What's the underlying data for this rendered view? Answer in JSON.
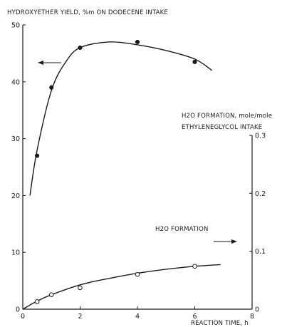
{
  "chart_data": {
    "type": "line",
    "xlabel": "REACTION TIME, h",
    "ylabel_left": "HYDROXYETHER YIELD, %m ON DODECENE INTAKE",
    "ylabel_right_line1": "H2O FORMATION, mole/mole",
    "ylabel_right_line2": "ETHYLENEGLYCOL INTAKE",
    "xlim": [
      0,
      8
    ],
    "ylim_left": [
      0,
      50
    ],
    "ylim_right": [
      0,
      0.3
    ],
    "x_ticks": [
      "0",
      "2",
      "4",
      "6",
      "8"
    ],
    "y_left_ticks": [
      "0",
      "10",
      "20",
      "30",
      "40",
      "50"
    ],
    "y_right_ticks": [
      "0",
      "0.1",
      "0.2",
      "0.3"
    ],
    "right_tick_values": [
      0,
      0.1,
      0.2,
      0.3
    ],
    "series": [
      {
        "axis": "left",
        "marker": "filled",
        "points": [
          {
            "x": 0.5,
            "y": 27
          },
          {
            "x": 1,
            "y": 39
          },
          {
            "x": 2,
            "y": 46
          },
          {
            "x": 4,
            "y": 47
          },
          {
            "x": 6,
            "y": 43.5
          }
        ],
        "curve": [
          {
            "x": 0.25,
            "y": 20
          },
          {
            "x": 0.5,
            "y": 28
          },
          {
            "x": 1,
            "y": 38.5
          },
          {
            "x": 1.5,
            "y": 43.5
          },
          {
            "x": 2,
            "y": 46
          },
          {
            "x": 3,
            "y": 47
          },
          {
            "x": 4,
            "y": 46.5
          },
          {
            "x": 5,
            "y": 45.5
          },
          {
            "x": 6,
            "y": 44
          },
          {
            "x": 6.6,
            "y": 42
          }
        ]
      },
      {
        "axis": "right",
        "name": "H2O FORMATION",
        "marker": "open",
        "points": [
          {
            "x": 0.5,
            "y": 0.013
          },
          {
            "x": 1,
            "y": 0.025
          },
          {
            "x": 2,
            "y": 0.037
          },
          {
            "x": 4,
            "y": 0.06
          },
          {
            "x": 6,
            "y": 0.074
          }
        ],
        "curve": [
          {
            "x": 0,
            "y": 0
          },
          {
            "x": 0.5,
            "y": 0.014
          },
          {
            "x": 1,
            "y": 0.025
          },
          {
            "x": 2,
            "y": 0.042
          },
          {
            "x": 3,
            "y": 0.053
          },
          {
            "x": 4,
            "y": 0.062
          },
          {
            "x": 5,
            "y": 0.069
          },
          {
            "x": 6,
            "y": 0.074
          },
          {
            "x": 6.9,
            "y": 0.077
          }
        ]
      }
    ]
  }
}
